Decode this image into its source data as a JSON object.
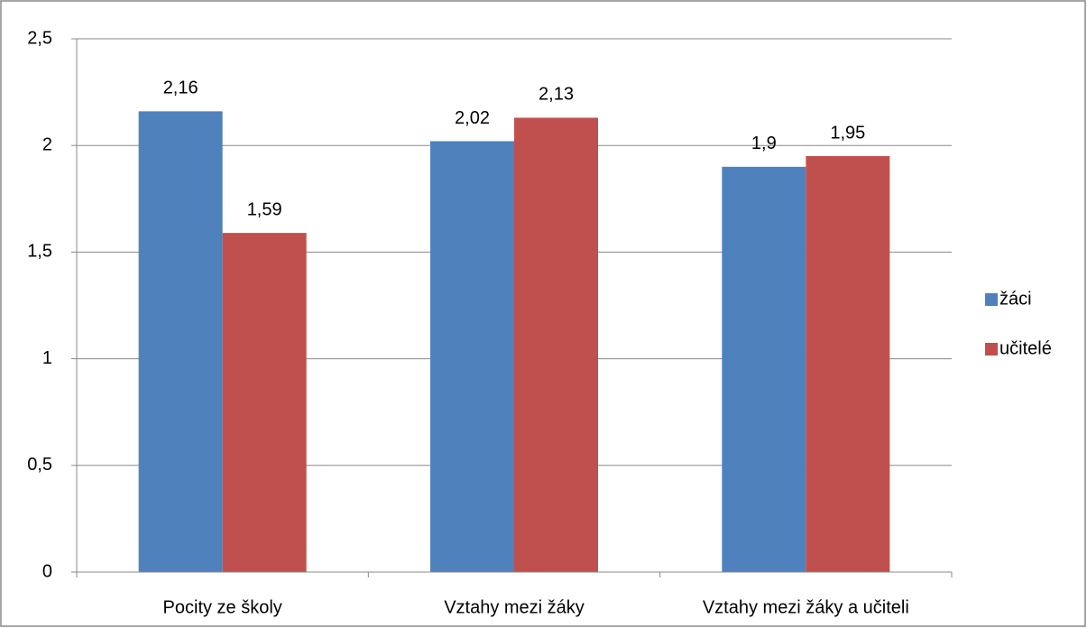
{
  "chart_data": {
    "type": "bar",
    "categories": [
      "Pocity ze školy",
      "Vztahy mezi žáky",
      "Vztahy mezi žáky a učiteli"
    ],
    "series": [
      {
        "name": "žáci",
        "color": "#4f81bd",
        "values": [
          2.16,
          2.02,
          1.9
        ],
        "value_labels": [
          "2,16",
          "2,02",
          "1,9"
        ]
      },
      {
        "name": "učitelé",
        "color": "#c0504d",
        "values": [
          1.59,
          2.13,
          1.95
        ],
        "value_labels": [
          "1,59",
          "2,13",
          "1,95"
        ]
      }
    ],
    "ylim": [
      0,
      2.5
    ],
    "yticks": [
      0,
      {
        "value": 0.5,
        "label": "0,5"
      },
      1,
      {
        "value": 1.5,
        "label": "1,5"
      },
      2,
      {
        "value": 2.5,
        "label": "2,5"
      }
    ],
    "grid": true,
    "legend": "right"
  }
}
